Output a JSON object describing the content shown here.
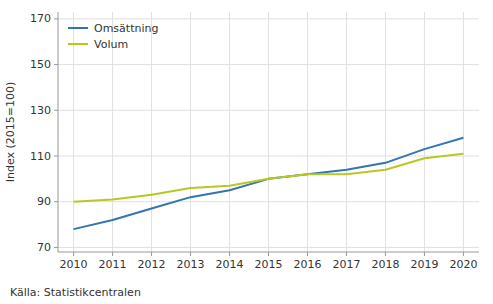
{
  "chart_data": {
    "type": "line",
    "x": [
      2010,
      2011,
      2012,
      2013,
      2014,
      2015,
      2016,
      2017,
      2018,
      2019,
      2020
    ],
    "series": [
      {
        "name": "Omsättning",
        "color": "#3375b0",
        "values": [
          78,
          82,
          87,
          92,
          95,
          100,
          102,
          104,
          107,
          113,
          118
        ]
      },
      {
        "name": "Volum",
        "color": "#b8c820",
        "values": [
          90,
          91,
          93,
          96,
          97,
          100,
          102,
          102,
          104,
          109,
          111
        ]
      }
    ],
    "ylabel": "Index (2015=100)",
    "xlim": [
      2009.6,
      2020.4
    ],
    "xticks": [
      2010,
      2011,
      2012,
      2013,
      2014,
      2015,
      2016,
      2017,
      2018,
      2019,
      2020
    ],
    "ylim": [
      68,
      173
    ],
    "yticks": [
      70,
      90,
      110,
      130,
      150,
      170
    ],
    "grid": true,
    "legend": "upper left",
    "annotations": [
      "Källa: Statistikcentralen"
    ]
  }
}
